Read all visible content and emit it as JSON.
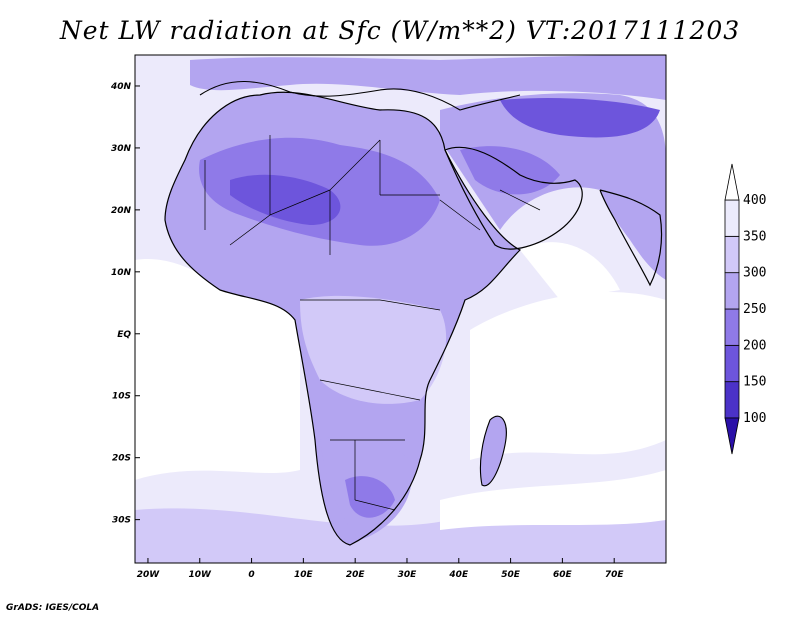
{
  "title": "Net LW radiation at Sfc (W/m**2) VT:2017111203",
  "credit": "GrADS: IGES/COLA",
  "chart_data": {
    "type": "heatmap",
    "title": "Net LW radiation at Sfc (W/m**2) VT:2017111203",
    "x_ticks": [
      "20W",
      "10W",
      "0",
      "10E",
      "20E",
      "30E",
      "40E",
      "50E",
      "60E",
      "70E"
    ],
    "x_tick_values": [
      -20,
      -10,
      0,
      10,
      20,
      30,
      40,
      50,
      60,
      70
    ],
    "y_ticks": [
      "40N",
      "30N",
      "20N",
      "10N",
      "EQ",
      "10S",
      "20S",
      "30S"
    ],
    "y_tick_values": [
      40,
      30,
      20,
      10,
      0,
      -10,
      -20,
      -30
    ],
    "lon_range": [
      -22.5,
      80
    ],
    "lat_range": [
      -37,
      45
    ],
    "colorbar": {
      "levels": [
        "100",
        "150",
        "200",
        "250",
        "300",
        "350",
        "400"
      ],
      "level_values": [
        100,
        150,
        200,
        250,
        300,
        350,
        400
      ],
      "colors": [
        "#2a10a8",
        "#4b32c8",
        "#6d55dc",
        "#8f7ae8",
        "#b3a5f0",
        "#d2c9f8",
        "#ecebfc",
        "#ffffff"
      ],
      "extend": "both"
    }
  }
}
